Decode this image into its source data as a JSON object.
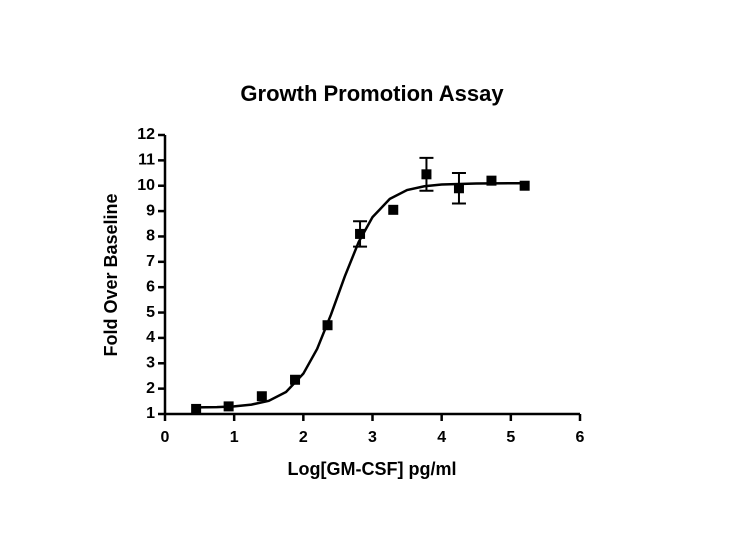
{
  "chart_data": {
    "type": "scatter",
    "title": "Growth Promotion  Assay",
    "xlabel": "Log[GM-CSF] pg/ml",
    "ylabel": "Fold  Over Baseline",
    "xlim": [
      0,
      6
    ],
    "xticks": [
      0,
      1,
      2,
      3,
      4,
      5,
      6
    ],
    "ylim": [
      1,
      12
    ],
    "yticks": [
      1,
      2,
      3,
      4,
      5,
      6,
      7,
      8,
      9,
      10,
      11,
      12
    ],
    "series": [
      {
        "type": "scatter",
        "color": "#000000",
        "marker": "square",
        "x": [
          0.45,
          0.92,
          1.4,
          1.88,
          2.35,
          2.82,
          3.3,
          3.78,
          4.25,
          4.72,
          5.2
        ],
        "values": [
          1.2,
          1.3,
          1.7,
          2.35,
          4.5,
          8.1,
          9.05,
          10.45,
          9.9,
          10.2,
          10.0
        ],
        "errors": [
          null,
          null,
          null,
          null,
          null,
          0.5,
          null,
          0.65,
          0.6,
          null,
          null
        ]
      },
      {
        "type": "line",
        "color": "#000000",
        "x": [
          0.45,
          0.75,
          1.0,
          1.25,
          1.5,
          1.75,
          2.0,
          2.2,
          2.4,
          2.6,
          2.8,
          3.0,
          3.25,
          3.5,
          3.75,
          4.0,
          4.5,
          5.2
        ],
        "values": [
          1.26,
          1.27,
          1.3,
          1.37,
          1.52,
          1.87,
          2.59,
          3.57,
          4.92,
          6.43,
          7.78,
          8.76,
          9.48,
          9.83,
          9.98,
          10.05,
          10.09,
          10.1
        ]
      }
    ]
  }
}
